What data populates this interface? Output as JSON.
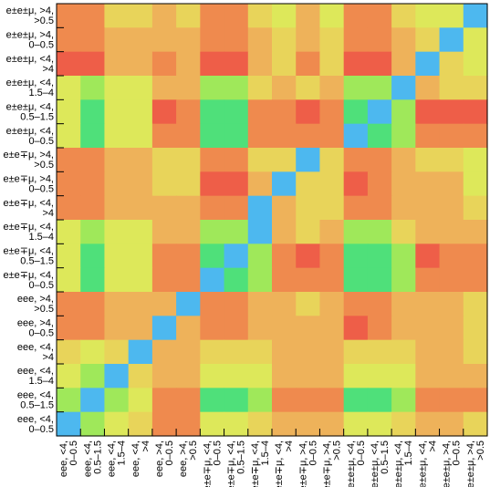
{
  "chart_data": {
    "type": "heatmap",
    "title": "",
    "xlabel": "",
    "ylabel": "",
    "grid": false,
    "legend": "none",
    "colorscale": [
      "#4db8ef",
      "#4fe07a",
      "#9fe85a",
      "#dde85a",
      "#e8d45a",
      "#eeb25a",
      "#ef8a4e",
      "#ee5e48"
    ],
    "x_categories": [
      [
        "eee, <4,",
        "0–0.5"
      ],
      [
        "eee, <4,",
        "0.5–1.5"
      ],
      [
        "eee, <4,",
        "1.5–4"
      ],
      [
        "eee, <4,",
        ">4"
      ],
      [
        "eee, >4,",
        "0–0.5"
      ],
      [
        "eee, >4,",
        ">0.5"
      ],
      [
        "e±e∓μ, <4,",
        "0–0.5"
      ],
      [
        "e±e∓μ, <4,",
        "0.5–1.5"
      ],
      [
        "e±e∓μ, <4,",
        "1.5–4"
      ],
      [
        "e±e∓μ, <4,",
        ">4"
      ],
      [
        "e±e∓μ, >4,",
        "0–0.5"
      ],
      [
        "e±e∓μ, >4,",
        ">0.5"
      ],
      [
        "e±e±μ, <4,",
        "0–0.5"
      ],
      [
        "e±e±μ, <4,",
        "0.5–1.5"
      ],
      [
        "e±e±μ, <4,",
        "1.5–4"
      ],
      [
        "e±e±μ, <4,",
        ">4"
      ],
      [
        "e±e±μ, >4,",
        "0–0.5"
      ],
      [
        "e±e±μ, >4,",
        ">0.5"
      ]
    ],
    "y_categories_top_to_bottom": [
      [
        "e±e±μ, >4,",
        ">0.5"
      ],
      [
        "e±e±μ, >4,",
        "0–0.5"
      ],
      [
        "e±e±μ, <4,",
        ">4"
      ],
      [
        "e±e±μ, <4,",
        "1.5–4"
      ],
      [
        "e±e±μ, <4,",
        "0.5–1.5"
      ],
      [
        "e±e±μ, <4,",
        "0–0.5"
      ],
      [
        "e±e∓μ, >4,",
        ">0.5"
      ],
      [
        "e±e∓μ, >4,",
        "0–0.5"
      ],
      [
        "e±e∓μ, <4,",
        ">4"
      ],
      [
        "e±e∓μ, <4,",
        "1.5–4"
      ],
      [
        "e±e∓μ, <4,",
        "0.5–1.5"
      ],
      [
        "e±e∓μ, <4,",
        "0–0.5"
      ],
      [
        "eee, >4,",
        ">0.5"
      ],
      [
        "eee, >4,",
        "0–0.5"
      ],
      [
        "eee, <4,",
        ">4"
      ],
      [
        "eee, <4,",
        "1.5–4"
      ],
      [
        "eee, <4,",
        "0.5–1.5"
      ],
      [
        "eee, <4,",
        "0–0.5"
      ]
    ],
    "values_rows_top_to_bottom": [
      [
        6,
        6,
        4,
        4,
        5,
        4,
        6,
        6,
        4,
        3,
        5,
        3,
        6,
        6,
        4,
        3,
        3,
        0
      ],
      [
        6,
        6,
        5,
        5,
        5,
        5,
        6,
        6,
        5,
        4,
        5,
        4,
        6,
        6,
        5,
        4,
        0,
        3
      ],
      [
        7,
        7,
        5,
        5,
        6,
        5,
        7,
        7,
        5,
        4,
        6,
        4,
        7,
        7,
        5,
        0,
        4,
        3
      ],
      [
        3,
        2,
        3,
        3,
        5,
        5,
        2,
        2,
        4,
        5,
        4,
        5,
        2,
        2,
        0,
        5,
        4,
        4
      ],
      [
        3,
        1,
        3,
        3,
        7,
        6,
        1,
        1,
        6,
        6,
        7,
        6,
        1,
        0,
        2,
        7,
        7,
        7
      ],
      [
        3,
        1,
        3,
        3,
        6,
        6,
        1,
        1,
        6,
        6,
        6,
        6,
        0,
        1,
        2,
        6,
        6,
        6
      ],
      [
        6,
        6,
        5,
        5,
        4,
        4,
        6,
        6,
        4,
        4,
        0,
        4,
        6,
        6,
        5,
        4,
        4,
        3
      ],
      [
        6,
        6,
        5,
        5,
        4,
        4,
        7,
        7,
        5,
        0,
        4,
        4,
        7,
        6,
        5,
        5,
        5,
        3
      ],
      [
        6,
        6,
        5,
        5,
        5,
        5,
        6,
        6,
        0,
        5,
        4,
        4,
        6,
        6,
        5,
        5,
        5,
        4
      ],
      [
        3,
        2,
        3,
        3,
        5,
        5,
        2,
        2,
        0,
        5,
        4,
        5,
        2,
        2,
        4,
        5,
        5,
        5
      ],
      [
        3,
        1,
        3,
        3,
        6,
        6,
        1,
        0,
        2,
        6,
        7,
        6,
        1,
        1,
        2,
        7,
        6,
        6
      ],
      [
        3,
        1,
        3,
        3,
        6,
        6,
        0,
        1,
        2,
        6,
        6,
        6,
        1,
        1,
        2,
        6,
        6,
        6
      ],
      [
        6,
        6,
        5,
        5,
        5,
        0,
        6,
        6,
        5,
        5,
        4,
        5,
        6,
        6,
        5,
        5,
        5,
        4
      ],
      [
        6,
        6,
        5,
        5,
        0,
        5,
        6,
        6,
        5,
        5,
        5,
        5,
        7,
        6,
        5,
        5,
        5,
        4
      ],
      [
        4,
        3,
        4,
        0,
        5,
        5,
        4,
        4,
        4,
        5,
        5,
        5,
        4,
        4,
        4,
        5,
        5,
        4
      ],
      [
        3,
        2,
        0,
        4,
        5,
        5,
        3,
        3,
        3,
        5,
        5,
        5,
        3,
        3,
        3,
        5,
        5,
        5
      ],
      [
        2,
        0,
        2,
        3,
        6,
        6,
        1,
        1,
        2,
        6,
        6,
        6,
        1,
        1,
        2,
        6,
        6,
        6
      ],
      [
        0,
        2,
        3,
        4,
        6,
        6,
        3,
        3,
        4,
        5,
        5,
        5,
        3,
        3,
        4,
        5,
        5,
        4
      ]
    ]
  }
}
